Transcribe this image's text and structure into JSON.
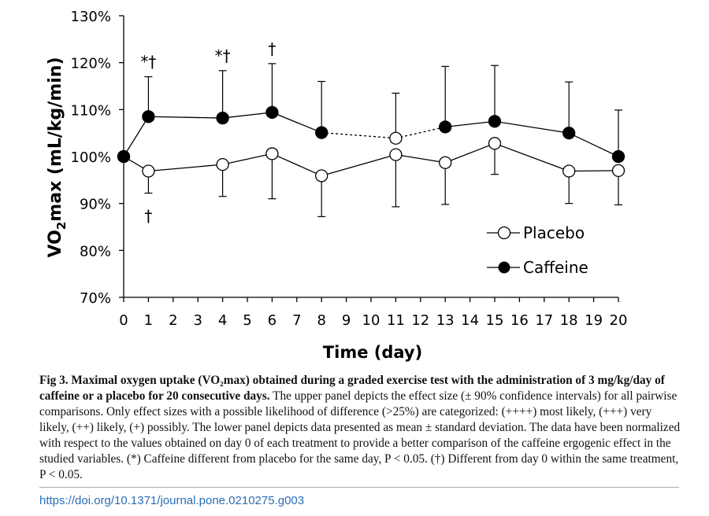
{
  "chart_data": {
    "type": "line",
    "xlabel": "Time (day)",
    "ylabel_parts": [
      "VO",
      "2",
      "max (mL/kg/min)"
    ],
    "ylim": [
      70,
      130
    ],
    "yticks": [
      70,
      80,
      90,
      100,
      110,
      120,
      130
    ],
    "ytick_labels": [
      "70%",
      "80%",
      "90%",
      "100%",
      "110%",
      "120%",
      "130%"
    ],
    "xlim": [
      0,
      20
    ],
    "xticks": [
      0,
      1,
      2,
      3,
      4,
      5,
      6,
      7,
      8,
      9,
      10,
      11,
      12,
      13,
      14,
      15,
      16,
      17,
      18,
      19,
      20
    ],
    "x": [
      0,
      1,
      4,
      6,
      8,
      11,
      13,
      15,
      18,
      20
    ],
    "series": [
      {
        "name": "Placebo",
        "marker": "open-circle",
        "values": [
          100,
          96.9,
          98.3,
          100.6,
          95.9,
          100.4,
          98.7,
          102.8,
          96.9,
          97.0
        ],
        "error_low": [
          100,
          92.2,
          91.5,
          91.0,
          87.2,
          89.3,
          89.8,
          96.2,
          90.0,
          89.7
        ]
      },
      {
        "name": "Caffeine",
        "marker": "filled-circle",
        "values": [
          100,
          108.5,
          108.2,
          109.4,
          105.1,
          103.9,
          106.3,
          107.5,
          105.0,
          100.0
        ],
        "error_high": [
          100,
          117.0,
          118.3,
          119.8,
          116.0,
          113.5,
          119.2,
          119.4,
          115.9,
          109.9
        ],
        "dashed_between": [
          [
            8,
            11
          ],
          [
            11,
            13
          ]
        ],
        "open_markers_at": [
          11
        ]
      }
    ],
    "annotations": [
      {
        "x": 1,
        "text": "*†",
        "position": "above"
      },
      {
        "x": 4,
        "text": "*†",
        "position": "above"
      },
      {
        "x": 6,
        "text": "†",
        "position": "above"
      },
      {
        "x": 1,
        "text": "†",
        "position": "below"
      }
    ],
    "legend": {
      "placement": "bottom-right",
      "entries": [
        "Placebo",
        "Caffeine"
      ]
    }
  },
  "caption": {
    "bold": "Fig 3. Maximal oxygen uptake (VO₂max) obtained during a graded exercise test with the administration of 3 mg/kg/day of caffeine or a placebo for 20 consecutive days.",
    "text": " The upper panel depicts the effect size (± 90% confidence intervals) for all pairwise comparisons. Only effect sizes with a possible likelihood of difference (>25%) are categorized: (++++) most likely, (+++) very likely, (++) likely, (+) possibly. The lower panel depicts data presented as mean ± standard deviation. The data have been normalized with respect to the values obtained on day 0 of each treatment to provide a better comparison of the caffeine ergogenic effect in the studied variables. (*) Caffeine different from placebo for the same day, P < 0.05. (†) Different from day 0 within the same treatment, P < 0.05."
  },
  "doi": "https://doi.org/10.1371/journal.pone.0210275.g003"
}
